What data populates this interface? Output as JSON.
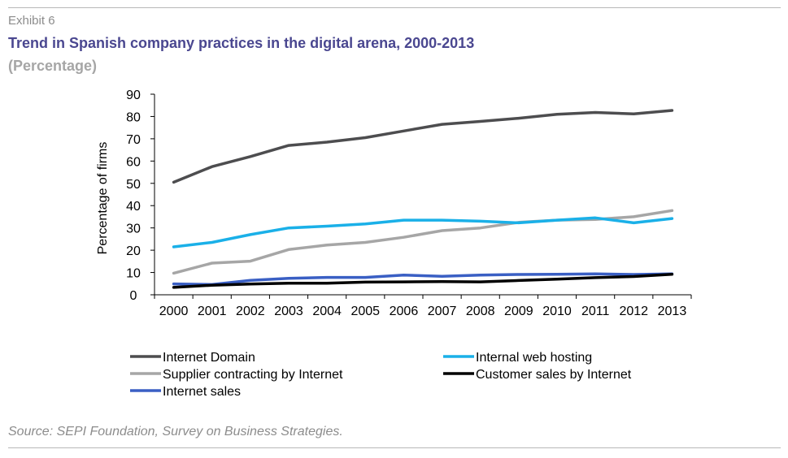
{
  "header": {
    "exhibit": "Exhibit 6",
    "title": "Trend in Spanish company practices in the digital arena, 2000-2013",
    "subtitle": "(Percentage)"
  },
  "footer": {
    "source": "Source: SEPI Foundation, Survey on Business Strategies."
  },
  "chart_data": {
    "type": "line",
    "title": "",
    "xlabel": "",
    "ylabel": "Percentage of firms",
    "ylim": [
      0,
      90
    ],
    "yticks": [
      0,
      10,
      20,
      30,
      40,
      50,
      60,
      70,
      80,
      90
    ],
    "categories": [
      "2000",
      "2001",
      "2002",
      "2003",
      "2004",
      "2005",
      "2006",
      "2007",
      "2008",
      "2009",
      "2010",
      "2011",
      "2012",
      "2013"
    ],
    "grid": false,
    "legend_position": "bottom",
    "series": [
      {
        "name": "Internet Domain",
        "color": "#4d4d4f",
        "values": [
          50.5,
          57.5,
          62,
          67,
          68.5,
          70.5,
          73.5,
          76.5,
          77.8,
          79.2,
          81,
          81.8,
          81.2,
          82.7
        ]
      },
      {
        "name": "Internal web hosting",
        "color": "#1ab0e8",
        "values": [
          21.5,
          23.5,
          27,
          30,
          30.8,
          31.8,
          33.5,
          33.5,
          33,
          32.3,
          33.5,
          34.5,
          32.3,
          34.2
        ]
      },
      {
        "name": "Supplier contracting by Internet",
        "color": "#a6a6a6",
        "values": [
          9.7,
          14.2,
          15.1,
          20.3,
          22.3,
          23.5,
          25.8,
          28.8,
          30,
          32.5,
          33.5,
          33.8,
          35,
          37.8
        ]
      },
      {
        "name": "Customer sales by Internet",
        "color": "#000000",
        "values": [
          3.3,
          4.3,
          4.8,
          5.2,
          5.2,
          5.7,
          5.8,
          5.9,
          5.8,
          6.4,
          7,
          7.7,
          8.2,
          9.2
        ]
      },
      {
        "name": "Internet sales",
        "color": "#3a5fc4",
        "values": [
          4.9,
          4.6,
          6.5,
          7.4,
          7.8,
          7.8,
          8.8,
          8.3,
          8.8,
          9.1,
          9.2,
          9.4,
          9.1,
          9.4
        ]
      }
    ]
  }
}
